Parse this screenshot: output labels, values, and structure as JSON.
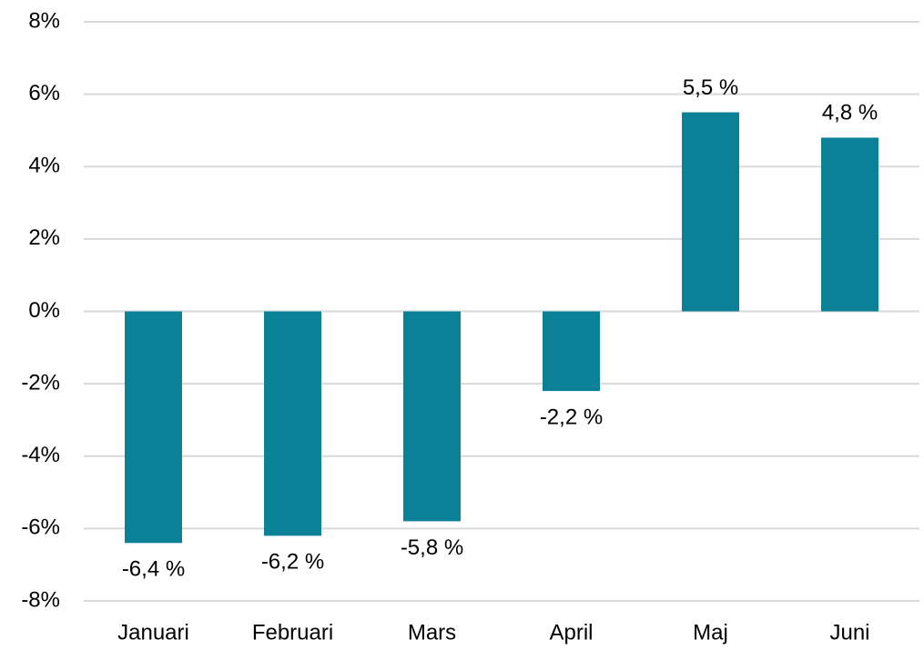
{
  "chart_data": {
    "type": "bar",
    "categories": [
      "Januari",
      "Februari",
      "Mars",
      "April",
      "Maj",
      "Juni"
    ],
    "values": [
      -6.4,
      -6.2,
      -5.8,
      -2.2,
      5.5,
      4.8
    ],
    "value_labels": [
      "-6,4 %",
      "-6,2 %",
      "-5,8 %",
      "-2,2 %",
      "5,5 %",
      "4,8 %"
    ],
    "color": "#0b8197",
    "ylim": [
      -8,
      8
    ],
    "yticks": [
      {
        "value": -8,
        "label": "-8%"
      },
      {
        "value": -6,
        "label": "-6%"
      },
      {
        "value": -4,
        "label": "-4%"
      },
      {
        "value": -2,
        "label": "-2%"
      },
      {
        "value": 0,
        "label": "0%"
      },
      {
        "value": 2,
        "label": "2%"
      },
      {
        "value": 4,
        "label": "4%"
      },
      {
        "value": 6,
        "label": "6%"
      },
      {
        "value": 8,
        "label": "8%"
      }
    ],
    "grid": true
  }
}
